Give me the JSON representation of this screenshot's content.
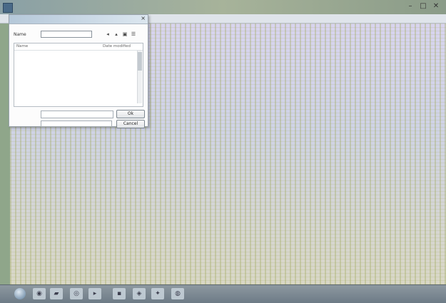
{
  "app": {
    "title": "",
    "window_controls": [
      "–",
      "□",
      "✕"
    ]
  },
  "dialog": {
    "title": "",
    "look_in_label": "Name",
    "look_in_value": "",
    "toolbar_icons": [
      "back-icon",
      "up-folder-icon",
      "new-folder-icon",
      "view-menu-icon"
    ],
    "columns": [
      "Name",
      "Date modified"
    ],
    "files": [
      {
        "name": "",
        "date": ""
      },
      {
        "name": "",
        "date": ""
      },
      {
        "name": "",
        "date": ""
      },
      {
        "name": "",
        "date": ""
      },
      {
        "name": "",
        "date": ""
      }
    ],
    "file_name_label": "",
    "file_type_label": "",
    "file_type_value": "",
    "open_label": "Ok",
    "cancel_label": "Cancel"
  },
  "taskbar": {
    "icons": [
      "start-orb",
      "explorer-icon",
      "folder-icon",
      "browser-icon",
      "media-icon",
      "app-icon",
      "app-icon-2",
      "settings-icon"
    ],
    "tray_text": ""
  }
}
